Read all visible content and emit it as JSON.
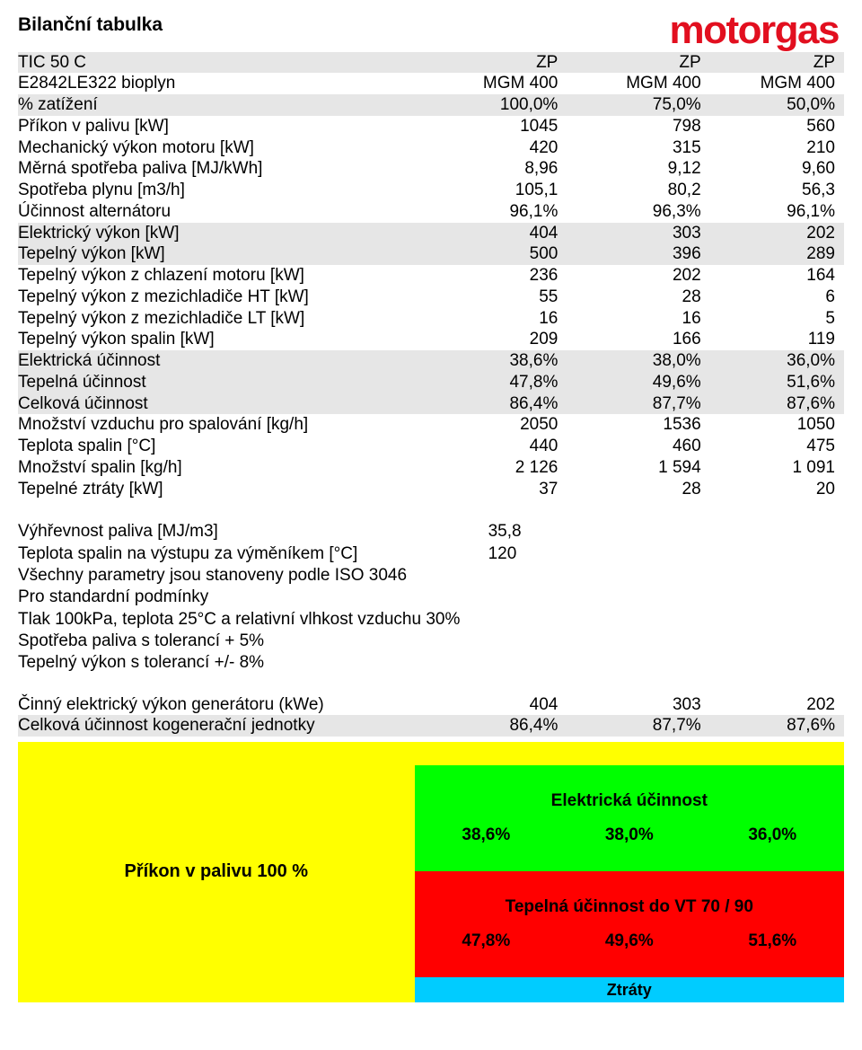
{
  "title": "Bilanční tabulka",
  "logo_text": "motorgas",
  "logo_color": "#e20f1f",
  "shade_color": "#e6e6e6",
  "header_rows": [
    {
      "shade": true,
      "label": "TIC 50 C",
      "v1": "ZP",
      "v2": "ZP",
      "v3": "ZP"
    },
    {
      "shade": false,
      "label": "E2842LE322 bioplyn",
      "v1": "MGM 400",
      "v2": "MGM 400",
      "v3": "MGM 400"
    }
  ],
  "main_rows": [
    {
      "shade": true,
      "label": "% zatížení",
      "v1": "100,0%",
      "v2": "75,0%",
      "v3": "50,0%"
    },
    {
      "shade": false,
      "label": "Příkon v palivu [kW]",
      "v1": "1045",
      "v2": "798",
      "v3": "560"
    },
    {
      "shade": false,
      "label": "Mechanický výkon motoru [kW]",
      "v1": "420",
      "v2": "315",
      "v3": "210"
    },
    {
      "shade": false,
      "label": "Měrná spotřeba paliva [MJ/kWh]",
      "v1": "8,96",
      "v2": "9,12",
      "v3": "9,60"
    },
    {
      "shade": false,
      "label": "Spotřeba plynu [m3/h]",
      "v1": "105,1",
      "v2": "80,2",
      "v3": "56,3"
    },
    {
      "shade": false,
      "label": "Účinnost alternátoru",
      "v1": "96,1%",
      "v2": "96,3%",
      "v3": "96,1%"
    },
    {
      "shade": true,
      "label": "Elektrický výkon [kW]",
      "v1": "404",
      "v2": "303",
      "v3": "202"
    },
    {
      "shade": true,
      "label": "Tepelný výkon [kW]",
      "v1": "500",
      "v2": "396",
      "v3": "289"
    },
    {
      "shade": false,
      "label": "Tepelný výkon z chlazení motoru [kW]",
      "v1": "236",
      "v2": "202",
      "v3": "164"
    },
    {
      "shade": false,
      "label": "Tepelný výkon z mezichladiče HT [kW]",
      "v1": "55",
      "v2": "28",
      "v3": "6"
    },
    {
      "shade": false,
      "label": "Tepelný výkon z mezichladiče LT [kW]",
      "v1": "16",
      "v2": "16",
      "v3": "5"
    },
    {
      "shade": false,
      "label": "Tepelný výkon spalin [kW]",
      "v1": "209",
      "v2": "166",
      "v3": "119"
    },
    {
      "shade": true,
      "label": "Elektrická účinnost",
      "v1": "38,6%",
      "v2": "38,0%",
      "v3": "36,0%"
    },
    {
      "shade": true,
      "label": "Tepelná účinnost",
      "v1": "47,8%",
      "v2": "49,6%",
      "v3": "51,6%"
    },
    {
      "shade": true,
      "label": "Celková účinnost",
      "v1": "86,4%",
      "v2": "87,7%",
      "v3": "87,6%"
    },
    {
      "shade": false,
      "label": "Množství vzduchu pro spalování [kg/h]",
      "v1": "2050",
      "v2": "1536",
      "v3": "1050"
    },
    {
      "shade": false,
      "label": "Teplota  spalin [°C]",
      "v1": "440",
      "v2": "460",
      "v3": "475"
    },
    {
      "shade": false,
      "label": "Množství spalin [kg/h]",
      "v1": "2 126",
      "v2": "1 594",
      "v3": "1 091"
    },
    {
      "shade": false,
      "label": "Tepelné ztráty [kW]",
      "v1": "37",
      "v2": "28",
      "v3": "20"
    }
  ],
  "footer_info": [
    {
      "label": "Výhřevnost paliva [MJ/m3]",
      "value": "35,8"
    },
    {
      "label": "Teplota spalin na výstupu za výměníkem  [°C]",
      "value": "120"
    }
  ],
  "note_lines": [
    "Všechny parametry jsou stanoveny podle ISO 3046",
    "Pro standardní podmínky",
    "Tlak 100kPa, teplota 25°C a relativní vlhkost vzduchu 30%",
    "Spotřeba paliva s tolerancí + 5%",
    "Tepelný výkon s tolerancí +/- 8%"
  ],
  "summary_rows": [
    {
      "shade": false,
      "label": "Činný elektrický výkon generátoru (kWe)",
      "v1": "404",
      "v2": "303",
      "v3": "202"
    },
    {
      "shade": true,
      "label": "Celková účinnost kogenerační jednotky",
      "v1": "86,4%",
      "v2": "87,7%",
      "v3": "87,6%"
    }
  ],
  "diagram": {
    "input_label": "Příkon v palivu 100 %",
    "elec": {
      "title": "Elektrická účinnost",
      "bg": "#00ff00",
      "values": [
        "38,6%",
        "38,0%",
        "36,0%"
      ]
    },
    "heat": {
      "title": "Tepelná účinnost do VT 70 / 90",
      "bg": "#ff0000",
      "values": [
        "47,8%",
        "49,6%",
        "51,6%"
      ]
    },
    "losses": {
      "title": "Ztráty",
      "bg": "#00ccff"
    },
    "yellow": "#ffff00"
  }
}
